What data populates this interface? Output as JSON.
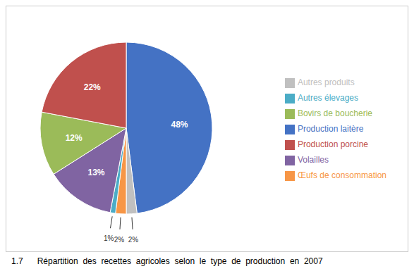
{
  "chart_data": {
    "type": "pie",
    "title": "1.7      Répartition  des  recettes  agricoles  selon  le  type  de  production  en  2007",
    "categories": [
      "Production laitère",
      "Autres produits",
      "Œufs de consommation",
      "Autres élevages",
      "Volailles",
      "Bovirs de boucherie",
      "Production porcine"
    ],
    "values": [
      48,
      2,
      2,
      1,
      13,
      12,
      22
    ],
    "value_labels": [
      "48%",
      "2%",
      "2%",
      "1%",
      "13%",
      "12%",
      "22%"
    ],
    "colors": [
      "#4472C4",
      "#C0C0C0",
      "#F79646",
      "#4BACC6",
      "#8064A2",
      "#9BBB59",
      "#C0504D"
    ],
    "data_labels": true,
    "legend": "right"
  }
}
